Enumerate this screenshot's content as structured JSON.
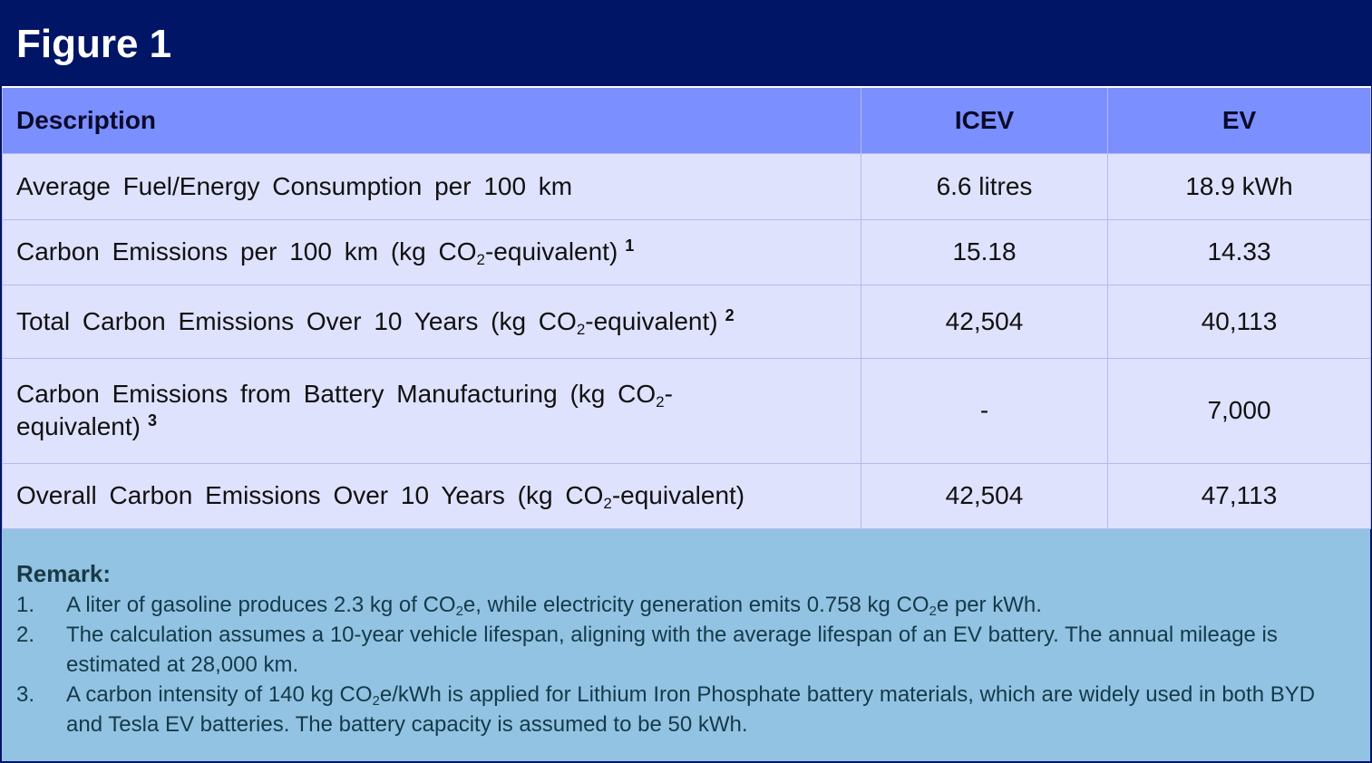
{
  "title": "Figure 1",
  "table": {
    "headers": {
      "description": "Description",
      "icev": "ICEV",
      "ev": "EV"
    },
    "rows": [
      {
        "description": "Average Fuel/Energy Consumption per 100 km",
        "icev": "6.6 litres",
        "ev": "18.9 kWh"
      },
      {
        "desc_a": "Carbon Emissions per 100 km (kg CO",
        "sub": "2",
        "desc_b": "-equivalent)",
        "footnote": "1",
        "icev": "15.18",
        "ev": "14.33"
      },
      {
        "desc_a": "Total Carbon Emissions Over 10 Years (kg CO",
        "sub": "2",
        "desc_b": "-equivalent)",
        "footnote": "2",
        "icev": "42,504",
        "ev": "40,113"
      },
      {
        "desc_a": "Carbon Emissions from Battery Manufacturing (kg CO",
        "sub": "2",
        "desc_b": "-",
        "desc_c": "equivalent)",
        "footnote": "3",
        "icev": "-",
        "ev": "7,000"
      },
      {
        "desc_a": "Overall Carbon Emissions Over 10 Years (kg CO",
        "sub": "2",
        "desc_b": "-equivalent)",
        "icev": "42,504",
        "ev": "47,113"
      }
    ]
  },
  "remark": {
    "title": "Remark:",
    "items": [
      {
        "num": "1.",
        "a": "A liter of gasoline produces 2.3 kg of CO",
        "sub1": "2",
        "b": "e, while electricity generation emits 0.758 kg CO",
        "sub2": "2",
        "c": "e per kWh."
      },
      {
        "num": "2.",
        "a": "The calculation assumes a 10-year vehicle lifespan, aligning with the average lifespan of an EV battery. The annual mileage is estimated at 28,000 km."
      },
      {
        "num": "3.",
        "a": "A carbon intensity of 140 kg CO",
        "sub1": "2",
        "b": "e/kWh is applied for Lithium Iron Phosphate battery materials, which are widely used in both BYD and Tesla EV batteries. The battery capacity is assumed to be 50 kWh."
      }
    ]
  },
  "colors": {
    "title_bg": "#001566",
    "header_bg": "#7b8ffe",
    "row_bg": "#dfe2fd",
    "remark_bg": "#93c3e2"
  }
}
